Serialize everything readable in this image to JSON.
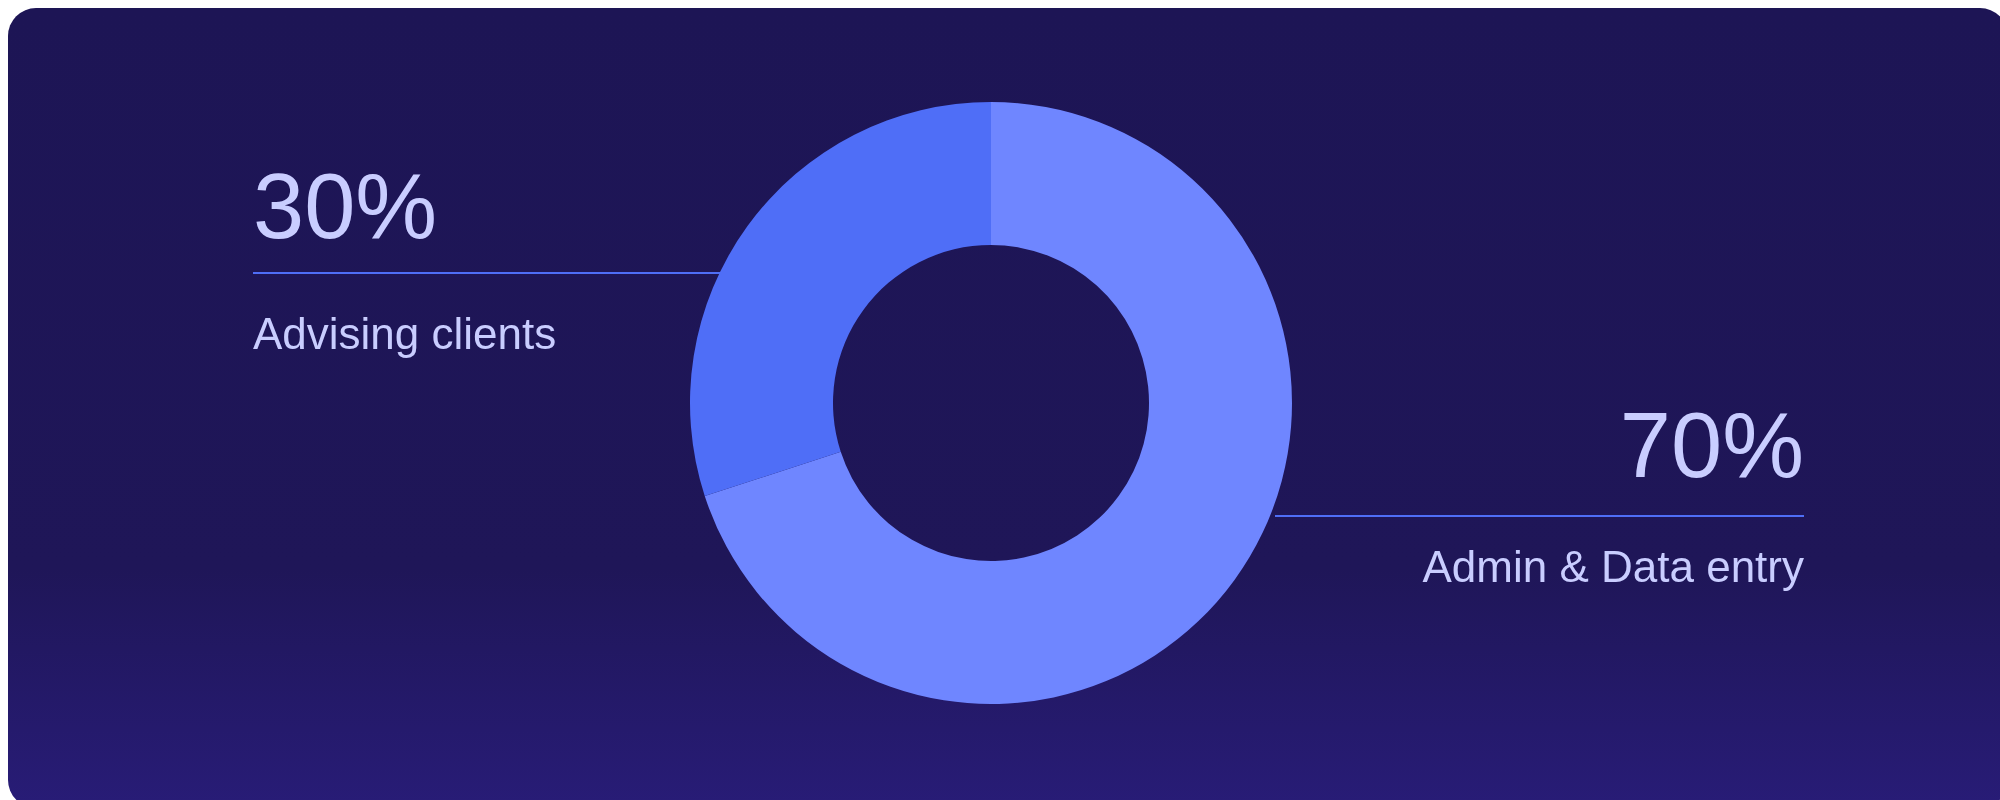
{
  "chart_data": {
    "type": "donut",
    "categories": [
      "Admin & Data entry",
      "Advising clients"
    ],
    "values": [
      70,
      30
    ],
    "value_labels": [
      "70%",
      "30%"
    ],
    "colors": [
      "#6f86ff",
      "#4f6ef7"
    ]
  }
}
